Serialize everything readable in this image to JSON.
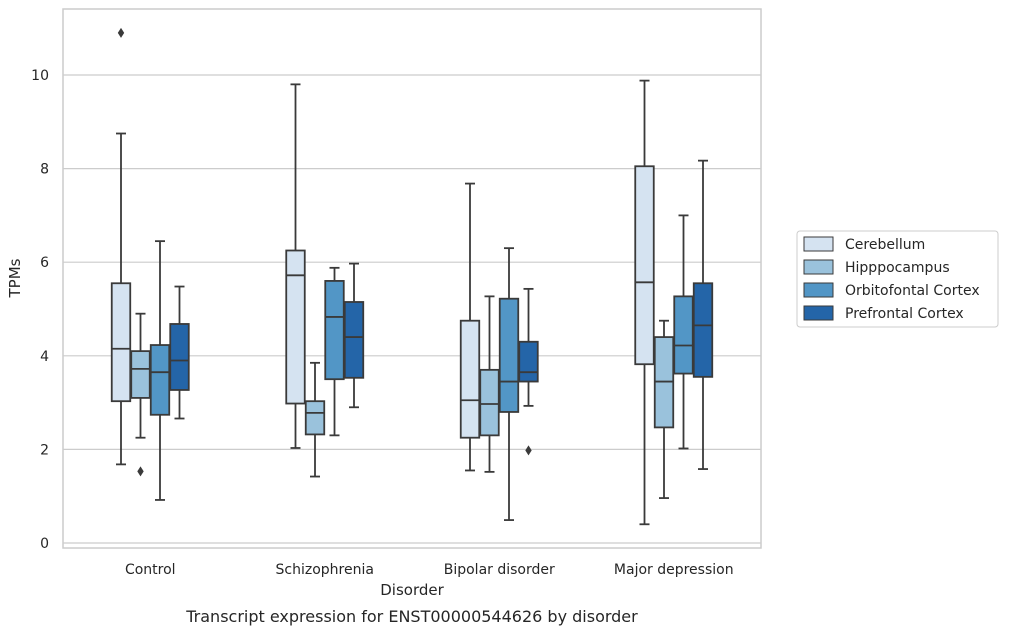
{
  "chart_data": {
    "type": "box",
    "title": "",
    "caption": "Transcript expression for ENST00000544626 by disorder",
    "xlabel": "Disorder",
    "ylabel": "TPMs",
    "ylim": [
      -0.1,
      11.4
    ],
    "yticks": [
      0,
      2,
      4,
      6,
      8,
      10
    ],
    "grid": true,
    "legend_position": "right",
    "categories": [
      "Control",
      "Schizophrenia",
      "Bipolar disorder",
      "Major depression"
    ],
    "series": [
      {
        "name": "Cerebellum",
        "color": "#d5e3f1",
        "boxes": [
          {
            "whislo": 1.68,
            "q1": 3.03,
            "med": 4.15,
            "q3": 5.55,
            "whishi": 8.75,
            "fliers": [
              10.9
            ]
          },
          {
            "whislo": 2.03,
            "q1": 2.98,
            "med": 5.72,
            "q3": 6.25,
            "whishi": 9.8,
            "fliers": []
          },
          {
            "whislo": 1.55,
            "q1": 2.25,
            "med": 3.05,
            "q3": 4.75,
            "whishi": 7.68,
            "fliers": []
          },
          {
            "whislo": 0.4,
            "q1": 3.82,
            "med": 5.57,
            "q3": 8.05,
            "whishi": 9.88,
            "fliers": []
          }
        ]
      },
      {
        "name": "Hipppocampus",
        "color": "#9ac2dc",
        "boxes": [
          {
            "whislo": 2.25,
            "q1": 3.1,
            "med": 3.72,
            "q3": 4.1,
            "whishi": 4.9,
            "fliers": [
              1.53
            ]
          },
          {
            "whislo": 1.42,
            "q1": 2.32,
            "med": 2.78,
            "q3": 3.03,
            "whishi": 3.85,
            "fliers": []
          },
          {
            "whislo": 1.52,
            "q1": 2.3,
            "med": 2.97,
            "q3": 3.7,
            "whishi": 5.27,
            "fliers": []
          },
          {
            "whislo": 0.96,
            "q1": 2.47,
            "med": 3.45,
            "q3": 4.4,
            "whishi": 4.75,
            "fliers": []
          }
        ]
      },
      {
        "name": "Orbitofontal Cortex",
        "color": "#5296c6",
        "boxes": [
          {
            "whislo": 0.92,
            "q1": 2.74,
            "med": 3.65,
            "q3": 4.23,
            "whishi": 6.45,
            "fliers": []
          },
          {
            "whislo": 2.3,
            "q1": 3.5,
            "med": 4.83,
            "q3": 5.6,
            "whishi": 5.88,
            "fliers": []
          },
          {
            "whislo": 0.49,
            "q1": 2.8,
            "med": 3.45,
            "q3": 5.22,
            "whishi": 6.3,
            "fliers": []
          },
          {
            "whislo": 2.02,
            "q1": 3.62,
            "med": 4.22,
            "q3": 5.27,
            "whishi": 7.0,
            "fliers": []
          }
        ]
      },
      {
        "name": "Prefrontal Cortex",
        "color": "#2465a8",
        "boxes": [
          {
            "whislo": 2.66,
            "q1": 3.27,
            "med": 3.9,
            "q3": 4.68,
            "whishi": 5.48,
            "fliers": []
          },
          {
            "whislo": 2.9,
            "q1": 3.53,
            "med": 4.4,
            "q3": 5.15,
            "whishi": 5.97,
            "fliers": []
          },
          {
            "whislo": 2.93,
            "q1": 3.45,
            "med": 3.65,
            "q3": 4.3,
            "whishi": 5.43,
            "fliers": [
              1.98
            ]
          },
          {
            "whislo": 1.58,
            "q1": 3.55,
            "med": 4.65,
            "q3": 5.55,
            "whishi": 8.17,
            "fliers": []
          }
        ]
      }
    ]
  }
}
